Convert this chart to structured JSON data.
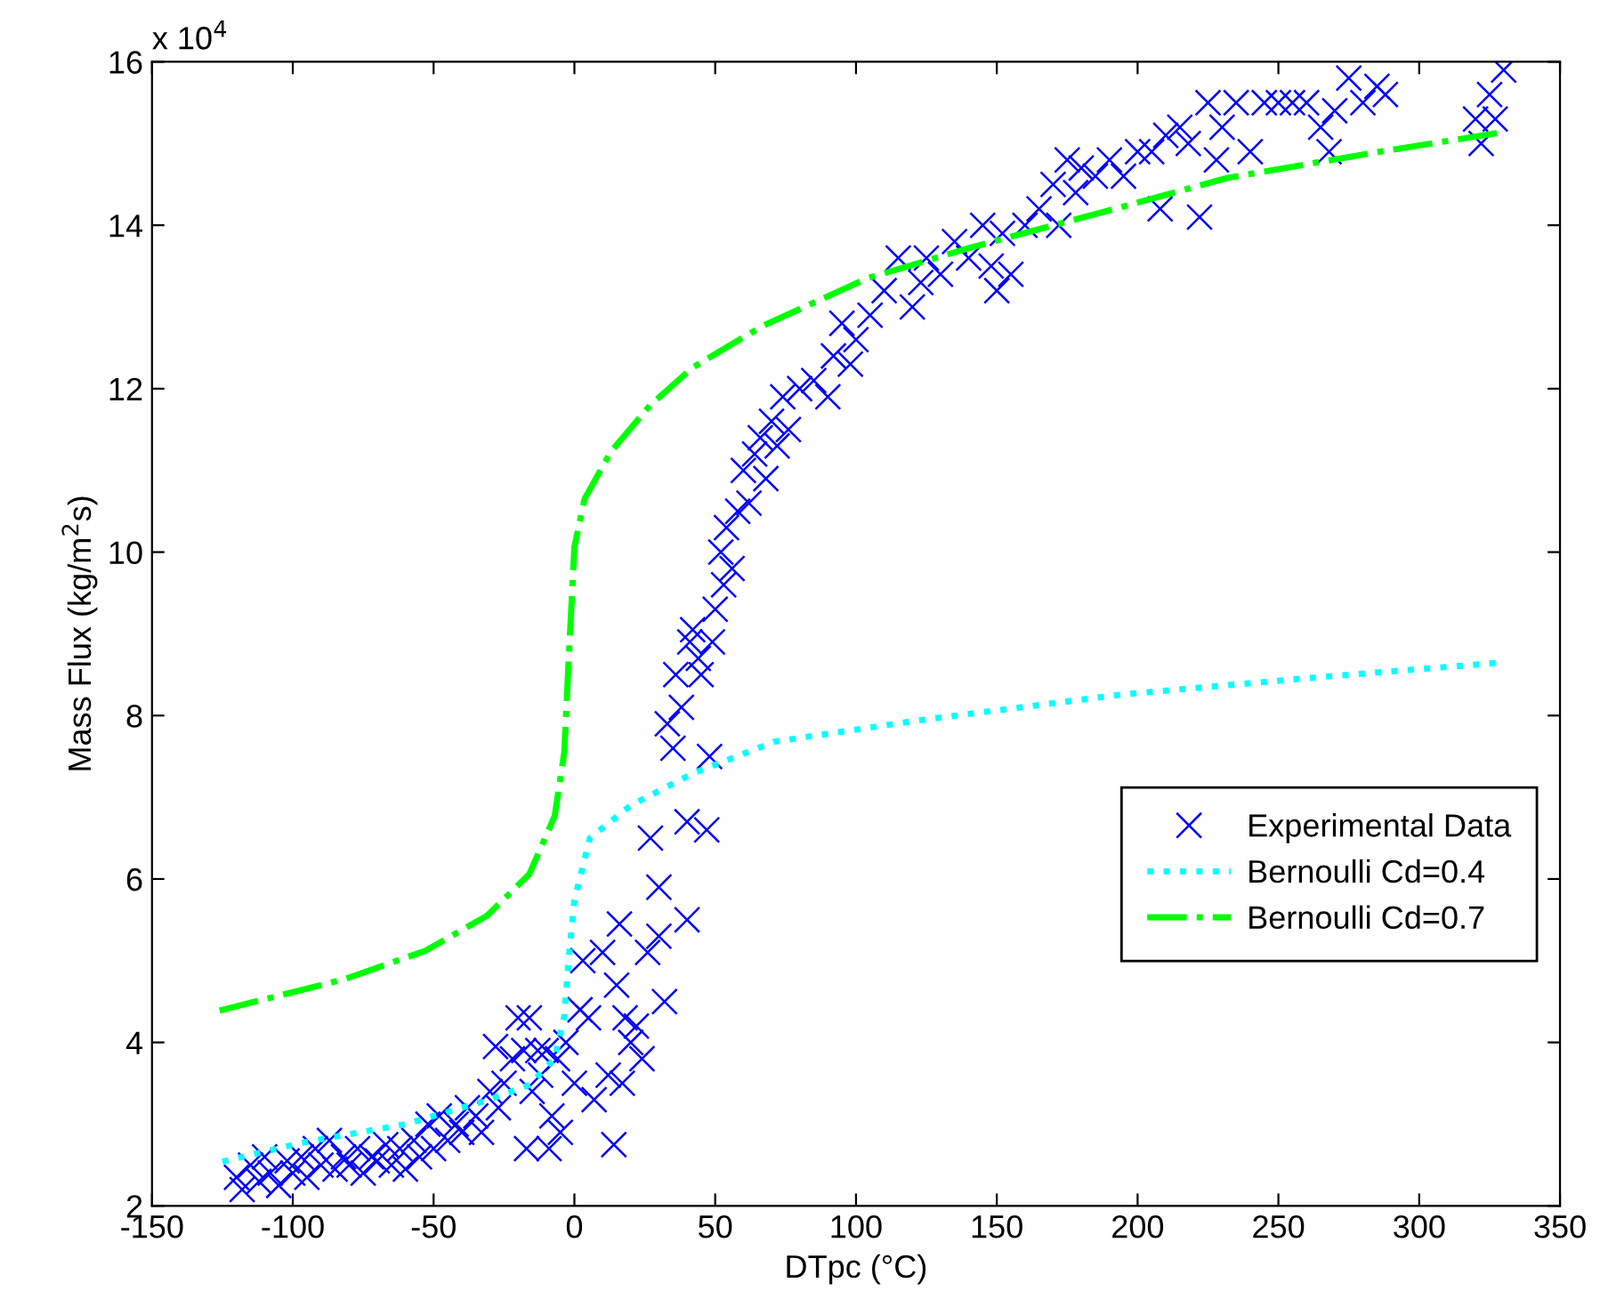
{
  "chart_data": {
    "type": "scatter",
    "xlabel": "DTpc (°C)",
    "ylabel": "Mass Flux (kg/m$^{2}$s)",
    "annotations": [
      "x 10$^{4}$"
    ],
    "xlim": [
      -150,
      350
    ],
    "xticks": [
      -150,
      -100,
      -50,
      0,
      50,
      100,
      150,
      200,
      250,
      300,
      350
    ],
    "ylim": [
      2,
      16
    ],
    "yticks": [
      2,
      4,
      6,
      8,
      10,
      12,
      14,
      16
    ],
    "grid": false,
    "legend": "bottom right",
    "series": [
      {
        "name": "Experimental Data",
        "color": "#0000ff",
        "marker": "cross",
        "x": [
          -120,
          -118,
          -115,
          -112,
          -110,
          -108,
          -105,
          -102,
          -100,
          -97,
          -95,
          -92,
          -90,
          -87,
          -85,
          -82,
          -80,
          -77,
          -75,
          -72,
          -70,
          -67,
          -65,
          -62,
          -60,
          -57,
          -55,
          -52,
          -50,
          -48,
          -45,
          -42,
          -40,
          -38,
          -35,
          -33,
          -30,
          -28,
          -27,
          -25,
          -22,
          -20,
          -18,
          -17,
          -16,
          -15,
          -13,
          -12,
          -10,
          -9,
          -8,
          -6,
          -5,
          -3,
          0,
          2,
          3,
          5,
          7,
          10,
          12,
          14,
          15,
          16,
          17,
          18,
          20,
          22,
          24,
          26,
          27,
          30,
          30,
          32,
          33,
          35,
          36,
          38,
          40,
          40,
          41,
          42,
          44,
          45,
          47,
          48,
          49,
          50,
          52,
          53,
          54,
          56,
          58,
          60,
          62,
          64,
          66,
          68,
          70,
          72,
          74,
          76,
          80,
          85,
          90,
          92,
          95,
          98,
          100,
          105,
          110,
          115,
          120,
          123,
          125,
          130,
          135,
          140,
          145,
          148,
          150,
          152,
          155,
          160,
          165,
          170,
          172,
          175,
          178,
          180,
          185,
          190,
          195,
          200,
          205,
          208,
          210,
          215,
          218,
          222,
          225,
          228,
          230,
          235,
          240,
          245,
          250,
          255,
          260,
          265,
          268,
          270,
          275,
          280,
          285,
          288,
          320,
          322,
          325,
          327,
          330
        ],
        "values": [
          2.35,
          2.2,
          2.5,
          2.3,
          2.6,
          2.4,
          2.25,
          2.55,
          2.4,
          2.6,
          2.35,
          2.7,
          2.5,
          2.8,
          2.45,
          2.6,
          2.5,
          2.7,
          2.4,
          2.6,
          2.55,
          2.75,
          2.5,
          2.7,
          2.45,
          2.8,
          2.6,
          3.0,
          2.7,
          3.1,
          2.8,
          3.0,
          2.9,
          3.2,
          3.1,
          2.9,
          3.4,
          3.95,
          3.2,
          3.5,
          3.8,
          4.3,
          3.9,
          2.7,
          4.3,
          3.4,
          3.9,
          3.6,
          3.9,
          2.7,
          3.1,
          3.8,
          2.9,
          4.0,
          3.5,
          4.4,
          5.0,
          4.3,
          3.3,
          5.1,
          3.6,
          2.75,
          4.7,
          5.45,
          3.5,
          4.3,
          4.0,
          4.2,
          3.8,
          5.1,
          6.5,
          5.3,
          5.9,
          4.5,
          7.9,
          7.6,
          8.5,
          8.1,
          5.5,
          6.7,
          8.9,
          9.05,
          8.7,
          8.5,
          6.6,
          7.5,
          8.9,
          9.3,
          10.0,
          9.6,
          10.3,
          9.8,
          10.5,
          11.0,
          10.6,
          11.2,
          11.4,
          10.9,
          11.6,
          11.3,
          11.9,
          11.5,
          12.0,
          12.1,
          11.9,
          12.4,
          12.8,
          12.3,
          12.6,
          12.9,
          13.2,
          13.6,
          13.0,
          13.3,
          13.6,
          13.4,
          13.8,
          13.6,
          14.0,
          13.5,
          13.2,
          13.9,
          13.4,
          14.0,
          14.2,
          14.5,
          14.0,
          14.8,
          14.4,
          14.7,
          14.6,
          14.8,
          14.6,
          14.9,
          14.9,
          14.2,
          15.1,
          15.2,
          15.0,
          14.1,
          15.5,
          14.8,
          15.2,
          15.5,
          14.9,
          15.5,
          15.5,
          15.5,
          15.5,
          15.2,
          14.9,
          15.4,
          15.8,
          15.5,
          15.7,
          15.6,
          15.3,
          15.0,
          15.6,
          15.3,
          15.9
        ]
      },
      {
        "name": "Bernoulli Cd=0.4",
        "type": "line",
        "color": "#00ffff",
        "line_style": "dotted",
        "marker": "none",
        "x": [
          -125,
          -97,
          -60,
          -31,
          -16,
          -7,
          -3.6,
          -1.8,
          0,
          5.5,
          20,
          42,
          71,
          122,
          195,
          268,
          330
        ],
        "values": [
          2.54,
          2.77,
          3.0,
          3.29,
          3.48,
          3.8,
          4.32,
          5.1,
          5.74,
          6.5,
          6.9,
          7.29,
          7.68,
          7.94,
          8.26,
          8.48,
          8.65
        ]
      },
      {
        "name": "Bernoulli Cd=0.7",
        "type": "line",
        "color": "#00ff00",
        "line_style": "dashdot",
        "marker": "none",
        "x": [
          -126,
          -111,
          -82,
          -53,
          -31,
          -16,
          -7,
          -3.6,
          -1.8,
          0,
          3.6,
          13,
          27,
          42,
          67,
          104,
          140,
          195,
          232,
          286,
          330
        ],
        "values": [
          4.39,
          4.52,
          4.77,
          5.12,
          5.55,
          6.06,
          6.77,
          7.55,
          8.84,
          10.06,
          10.65,
          11.23,
          11.8,
          12.26,
          12.77,
          13.35,
          13.72,
          14.23,
          14.58,
          14.9,
          15.14
        ]
      }
    ]
  }
}
